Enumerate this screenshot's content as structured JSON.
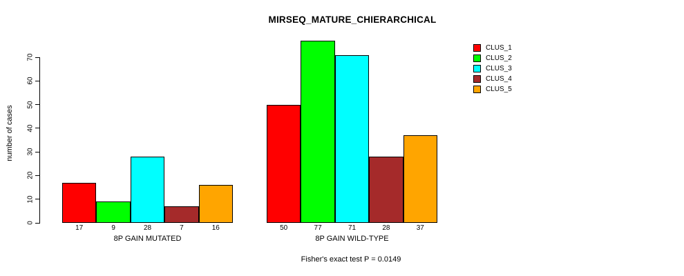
{
  "chart_data": {
    "type": "bar",
    "title": "MIRSEQ_MATURE_CHIERARCHICAL",
    "ylabel": "number of cases",
    "xlabel": "",
    "ylim": [
      0,
      77
    ],
    "y_ticks": [
      0,
      10,
      20,
      30,
      40,
      50,
      60,
      70
    ],
    "grid": false,
    "legend_position": "top-right",
    "categories": [
      "8P GAIN MUTATED",
      "8P GAIN WILD-TYPE"
    ],
    "series": [
      {
        "name": "CLUS_1",
        "color": "#FF0000",
        "values": [
          17,
          50
        ]
      },
      {
        "name": "CLUS_2",
        "color": "#00FF00",
        "values": [
          9,
          77
        ]
      },
      {
        "name": "CLUS_3",
        "color": "#00FFFF",
        "values": [
          28,
          71
        ]
      },
      {
        "name": "CLUS_4",
        "color": "#A52A2A",
        "values": [
          7,
          28
        ]
      },
      {
        "name": "CLUS_5",
        "color": "#FFA500",
        "values": [
          16,
          37
        ]
      }
    ],
    "bar_value_labels_shown": true,
    "annotation": "Fisher's exact test P = 0.0149"
  }
}
